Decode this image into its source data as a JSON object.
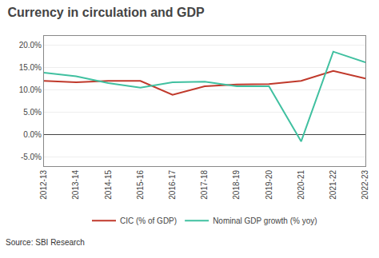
{
  "chart_data": {
    "type": "line",
    "title": "Currency in circulation and GDP",
    "annotations": [
      "Source: SBI Research"
    ],
    "categories": [
      "2012-13",
      "2013-14",
      "2014-15",
      "2015-16",
      "2016-17",
      "2017-18",
      "2018-19",
      "2019-20",
      "2020-21",
      "2021-22",
      "2022-23"
    ],
    "series": [
      {
        "name": "CIC (% of GDP)",
        "color": "#c0392b",
        "values": [
          12.0,
          11.7,
          12.0,
          12.0,
          8.9,
          10.8,
          11.2,
          11.3,
          12.0,
          14.2,
          12.5
        ]
      },
      {
        "name": "Nominal GDP growth (% yoy)",
        "color": "#40c0a0",
        "values": [
          13.8,
          13.0,
          11.5,
          10.5,
          11.7,
          11.8,
          10.8,
          10.8,
          -1.5,
          18.5,
          16.1
        ]
      }
    ],
    "ylim": [
      -7.0,
      22.0
    ],
    "yticks": [
      {
        "value": -5.0,
        "label": "-5.0%"
      },
      {
        "value": 0.0,
        "label": "0.0%"
      },
      {
        "value": 5.0,
        "label": "5.0%"
      },
      {
        "value": 10.0,
        "label": "10.0%"
      },
      {
        "value": 15.0,
        "label": "15.0%"
      },
      {
        "value": 20.0,
        "label": "20.0%"
      }
    ],
    "grid": true,
    "legend": "bottom"
  }
}
